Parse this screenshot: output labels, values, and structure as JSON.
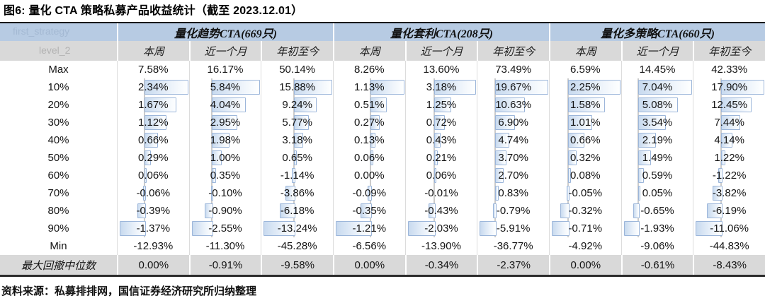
{
  "figure": {
    "title": "图6: 量化 CTA 策略私募产品收益统计（截至 2023.12.01）",
    "source": "资料来源：私募排排网，国信证券经济研究所归纳整理"
  },
  "colors": {
    "group_header_bg": "#b7cbe3",
    "sub_header_bg": "#d9d9d9",
    "highlight_row_bg": "#d9d9d9",
    "bar_border": "#9cb6da",
    "bar_fill": "#c8daef",
    "zero_axis": "#cbcbcb"
  },
  "ghost_text": {
    "group_header_cell": "first_strategy",
    "sub_header_cell": "level_2"
  },
  "chart_data": {
    "type": "table",
    "title": "图6: 量化 CTA 策略私募产品收益统计（截至 2023.12.01）",
    "column_groups": [
      "量化趋势CTA(669只)",
      "量化套利CTA(208只)",
      "量化多策略CTA(660只)"
    ],
    "sub_headers": [
      "本周",
      "近一个月",
      "年初至今"
    ],
    "value_format": "percent_2dp",
    "rows": [
      {
        "label": "Max",
        "bars": false,
        "highlight": false,
        "values": [
          7.58,
          16.17,
          50.14,
          8.26,
          13.6,
          73.49,
          6.59,
          14.45,
          42.33
        ]
      },
      {
        "label": "10%",
        "bars": true,
        "highlight": false,
        "values": [
          2.34,
          5.84,
          15.88,
          1.13,
          3.18,
          19.67,
          2.25,
          7.04,
          17.9
        ]
      },
      {
        "label": "20%",
        "bars": true,
        "highlight": false,
        "values": [
          1.67,
          4.04,
          9.24,
          0.51,
          1.25,
          10.63,
          1.58,
          5.08,
          12.45
        ]
      },
      {
        "label": "30%",
        "bars": true,
        "highlight": false,
        "values": [
          1.12,
          2.95,
          5.77,
          0.27,
          0.72,
          6.9,
          1.01,
          3.54,
          7.44
        ]
      },
      {
        "label": "40%",
        "bars": true,
        "highlight": false,
        "values": [
          0.66,
          1.98,
          3.18,
          0.13,
          0.43,
          4.74,
          0.66,
          2.19,
          4.14
        ]
      },
      {
        "label": "50%",
        "bars": true,
        "highlight": false,
        "values": [
          0.29,
          1.0,
          0.65,
          0.06,
          0.21,
          3.7,
          0.32,
          1.49,
          1.22
        ]
      },
      {
        "label": "60%",
        "bars": true,
        "highlight": false,
        "values": [
          0.06,
          0.35,
          -1.14,
          0.0,
          0.06,
          2.7,
          0.08,
          0.59,
          -1.22
        ]
      },
      {
        "label": "70%",
        "bars": true,
        "highlight": false,
        "values": [
          -0.06,
          -0.1,
          -3.86,
          -0.09,
          -0.01,
          0.83,
          -0.05,
          0.05,
          -3.82
        ]
      },
      {
        "label": "80%",
        "bars": true,
        "highlight": false,
        "values": [
          -0.39,
          -0.9,
          -6.18,
          -0.35,
          -0.43,
          -0.79,
          -0.32,
          -0.65,
          -6.19
        ]
      },
      {
        "label": "90%",
        "bars": true,
        "highlight": false,
        "values": [
          -1.37,
          -2.55,
          -13.24,
          -1.21,
          -2.03,
          -5.91,
          -0.71,
          -1.93,
          -11.06
        ]
      },
      {
        "label": "Min",
        "bars": false,
        "highlight": false,
        "values": [
          -12.93,
          -11.3,
          -45.28,
          -6.56,
          -13.9,
          -36.77,
          -4.92,
          -9.06,
          -44.83
        ]
      },
      {
        "label": "最大回撤中位数",
        "bars": false,
        "highlight": true,
        "values": [
          0.0,
          -0.91,
          -9.58,
          0.0,
          -0.34,
          -2.37,
          0.0,
          -0.61,
          -8.43
        ]
      }
    ]
  }
}
